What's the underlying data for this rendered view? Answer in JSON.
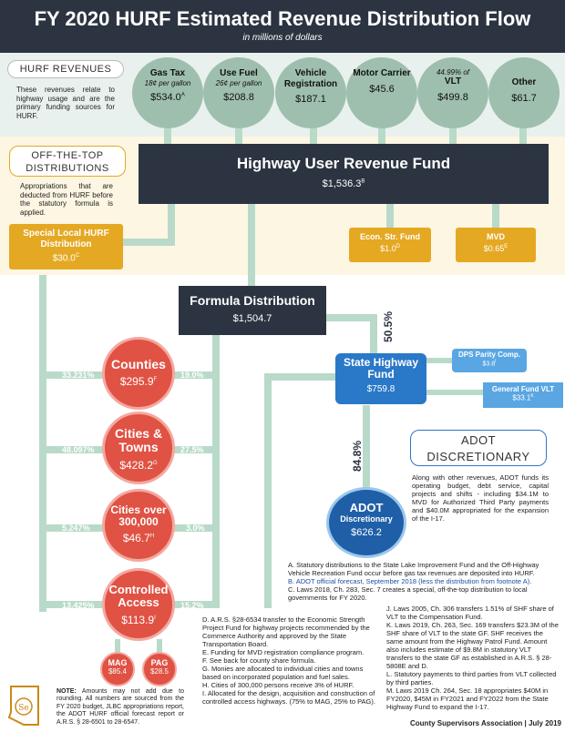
{
  "title": "FY 2020 HURF Estimated Revenue Distribution Flow",
  "subtitle": "in millions of dollars",
  "hurf_revenues": {
    "label": "HURF REVENUES",
    "desc": "These revenues relate to highway usage and are the primary funding sources for HURF.",
    "sources": [
      {
        "name": "Gas Tax",
        "sub": "18¢ per gallon",
        "value": "$534.0",
        "sup": "A"
      },
      {
        "name": "Use Fuel",
        "sub": "26¢ per gallon",
        "value": "$208.8",
        "sup": ""
      },
      {
        "name": "Vehicle Registration",
        "sub": "",
        "value": "$187.1",
        "sup": ""
      },
      {
        "name": "Motor Carrier",
        "sub": "",
        "value": "$45.6",
        "sup": ""
      },
      {
        "name": "VLT",
        "sub": "44.99% of",
        "value": "$499.8",
        "sup": ""
      },
      {
        "name": "Other",
        "sub": "",
        "value": "$61.7",
        "sup": ""
      }
    ]
  },
  "off_top": {
    "label": "OFF-THE-TOP DISTRIBUTIONS",
    "desc": "Appropriations that are deducted from HURF before the statutory formula is applied."
  },
  "hurf_fund": {
    "name": "Highway User Revenue Fund",
    "value": "$1,536.3",
    "sup": "B"
  },
  "special_local": {
    "name": "Special Local HURF Distribution",
    "value": "$30.0",
    "sup": "C"
  },
  "econ": {
    "name": "Econ. Str. Fund",
    "value": "$1.0",
    "sup": "D"
  },
  "mvd": {
    "name": "MVD",
    "value": "$0.65",
    "sup": "E"
  },
  "formula": {
    "name": "Formula Distribution",
    "value": "$1,504.7"
  },
  "pct_state": "50.5%",
  "state_highway": {
    "name": "State Highway Fund",
    "value": "$759.8"
  },
  "dps": {
    "name": "DPS Parity Comp.",
    "value": "$3.8",
    "sup": "I"
  },
  "gf_vlt": {
    "name": "General Fund VLT",
    "value": "$33.1",
    "sup": "K"
  },
  "pct_adot": "84.8%",
  "adot": {
    "name": "ADOT",
    "sub": "Discretionary",
    "value": "$626.2"
  },
  "adot_disc": {
    "label": "ADOT DISCRETIONARY",
    "desc": "Along with other revenues, ADOT funds its operating budget, debt service, capital projects and shifts - including $34.1M to MVD for Authorized Third Party payments and $40.0M appropriated for the expansion of the I-17."
  },
  "counties": {
    "name": "Counties",
    "value": "$295.9",
    "sup": "F",
    "left_pct": "33.231%",
    "right_pct": "19.0%"
  },
  "cities": {
    "name": "Cities & Towns",
    "value": "$428.2",
    "sup": "G",
    "left_pct": "48.097%",
    "right_pct": "27.5%"
  },
  "cities300": {
    "name": "Cities over 300,000",
    "value": "$46.7",
    "sup": "H",
    "left_pct": "5.247%",
    "right_pct": "3.0%"
  },
  "controlled": {
    "name": "Controlled Access",
    "value": "$113.9",
    "sup": "I",
    "left_pct": "13.425%",
    "right_pct": "15.2%"
  },
  "mag": {
    "name": "MAG",
    "value": "$85.4"
  },
  "pag": {
    "name": "PAG",
    "value": "$28.5"
  },
  "note": {
    "label": "NOTE:",
    "text": "Amounts may not add due to rounding. All numbers are sourced from the FY 2020 budget, JLBC appropriations report, the ADOT HURF official forecast report or A.R.S. § 28-6501 to 28-6547."
  },
  "footnotes_col1": [
    "A. Statutory distributions to the State Lake Improvement Fund and the Off-Highway Vehicle Recreation Fund occur before gas tax revenues are deposited into HURF.",
    "B. ADOT official forecast, September 2018 (less the distribution from footnote A).",
    "C. Laws 2018, Ch. 283, Sec. 7 creates a special, off-the-top distribution to local governments for FY 2020."
  ],
  "footnotes_col2": [
    "D. A.R.S. §28-6534 transfer to the Economic Strength Project Fund for highway projects recommended by the Commerce Authority and approved by the State Transportation Board.",
    "E. Funding for MVD registration compliance program.",
    "F. See back for county share formula.",
    "G. Monies are allocated to individual cities and towns based on incorporated population and fuel sales.",
    "H. Cities of 300,000 persons receive 3% of HURF.",
    "I. Allocated for the design, acquisition and construction of controlled access highways. (75% to MAG, 25% to PAG)."
  ],
  "footnotes_col3": [
    "J. Laws 2005, Ch. 306 transfers 1.51% of SHF share of VLT to the Compensation Fund.",
    "K. Laws 2019, Ch. 263, Sec. 169 transfers $23.3M of the SHF share of VLT to the state GF. SHF receives the same amount from the Highway Patrol Fund. Amount also includes estimate of $9.8M in statutory VLT transfers to the state GF as established in A.R.S. § 28-5808E and D.",
    "L. Statutory payments to third parties from VLT collected by third parties.",
    "M. Laws 2019 Ch. 264, Sec. 18 appropriates $40M in FY2020, $45M in FY2021 and FY2022 from the State Highway Fund to expand the I-17."
  ],
  "footer": "County Supervisors Association | July 2019"
}
